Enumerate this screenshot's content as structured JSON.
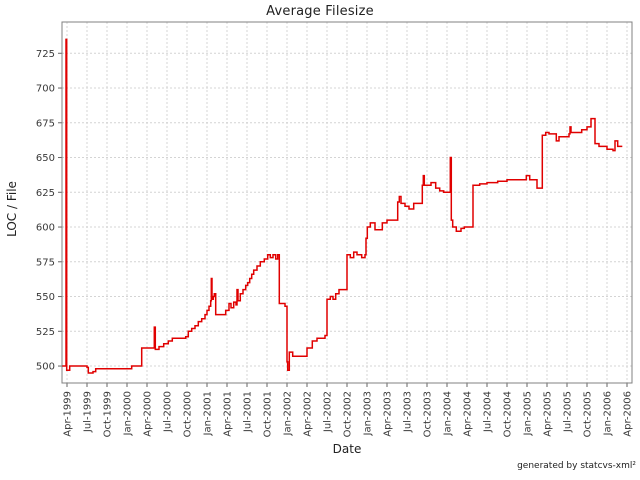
{
  "title": "Average Filesize",
  "footer": "generated by statcvs-xml²",
  "chart_data": {
    "type": "line",
    "step": true,
    "title": "Average Filesize",
    "xlabel": "Date",
    "ylabel": "LOC / File",
    "legend": "none",
    "grid": true,
    "x_unit": "months since Apr-1999",
    "xlim": [
      -0.75,
      84.75
    ],
    "ylim": [
      487.8,
      747.5
    ],
    "y_ticks": [
      500,
      525,
      550,
      575,
      600,
      625,
      650,
      675,
      700,
      725
    ],
    "x_tick_step_months": 3,
    "x_tick_labels": [
      "Apr-1999",
      "Jul-1999",
      "Oct-1999",
      "Jan-2000",
      "Apr-2000",
      "Jul-2000",
      "Oct-2000",
      "Jan-2001",
      "Apr-2001",
      "Jul-2001",
      "Oct-2001",
      "Jan-2002",
      "Apr-2002",
      "Jul-2002",
      "Oct-2002",
      "Jan-2003",
      "Apr-2003",
      "Jul-2003",
      "Oct-2003",
      "Jan-2004",
      "Apr-2004",
      "Jul-2004",
      "Oct-2004",
      "Jan-2005",
      "Apr-2005",
      "Jul-2005",
      "Oct-2005",
      "Jan-2006",
      "Apr-2006"
    ],
    "colors": {
      "line": "#e00000",
      "grid": "#d4d4d4",
      "axis": "#808080",
      "tick": "#666666",
      "text": "#3a3a3a",
      "background": "#ffffff"
    },
    "series": [
      {
        "name": "Average Filesize (LOC / File)",
        "color": "#e00000",
        "points": [
          [
            -0.7,
            500
          ],
          [
            -0.15,
            735
          ],
          [
            -0.05,
            497
          ],
          [
            0.4,
            500
          ],
          [
            3.0,
            499
          ],
          [
            3.2,
            495
          ],
          [
            3.9,
            496
          ],
          [
            4.3,
            498
          ],
          [
            9.7,
            500
          ],
          [
            11.2,
            513
          ],
          [
            13.1,
            528
          ],
          [
            13.25,
            512
          ],
          [
            13.8,
            514
          ],
          [
            14.5,
            516
          ],
          [
            15.2,
            518
          ],
          [
            15.8,
            520
          ],
          [
            17.8,
            521
          ],
          [
            18.2,
            525
          ],
          [
            18.7,
            527
          ],
          [
            19.2,
            529
          ],
          [
            19.7,
            532
          ],
          [
            20.2,
            534
          ],
          [
            20.7,
            537
          ],
          [
            21.0,
            540
          ],
          [
            21.3,
            543
          ],
          [
            21.55,
            547
          ],
          [
            21.65,
            563
          ],
          [
            21.75,
            548
          ],
          [
            21.95,
            550
          ],
          [
            22.1,
            552
          ],
          [
            22.3,
            537
          ],
          [
            23.8,
            540
          ],
          [
            24.3,
            545
          ],
          [
            24.6,
            542
          ],
          [
            25.0,
            546
          ],
          [
            25.35,
            544
          ],
          [
            25.5,
            555
          ],
          [
            25.65,
            547
          ],
          [
            26.0,
            552
          ],
          [
            26.4,
            555
          ],
          [
            26.8,
            558
          ],
          [
            27.1,
            560
          ],
          [
            27.4,
            563
          ],
          [
            27.7,
            566
          ],
          [
            28.0,
            569
          ],
          [
            28.5,
            572
          ],
          [
            29.0,
            575
          ],
          [
            29.6,
            577
          ],
          [
            30.1,
            580
          ],
          [
            30.5,
            578
          ],
          [
            30.9,
            580
          ],
          [
            31.3,
            577
          ],
          [
            31.6,
            580
          ],
          [
            31.85,
            545
          ],
          [
            32.7,
            543
          ],
          [
            33.0,
            503
          ],
          [
            33.1,
            497
          ],
          [
            33.35,
            510
          ],
          [
            33.85,
            507
          ],
          [
            36.0,
            513
          ],
          [
            36.8,
            518
          ],
          [
            37.5,
            520
          ],
          [
            38.7,
            522
          ],
          [
            39.0,
            548
          ],
          [
            39.5,
            550
          ],
          [
            39.9,
            548
          ],
          [
            40.3,
            552
          ],
          [
            40.8,
            555
          ],
          [
            42.0,
            580
          ],
          [
            42.5,
            578
          ],
          [
            43.0,
            582
          ],
          [
            43.5,
            580
          ],
          [
            44.2,
            578
          ],
          [
            44.7,
            580
          ],
          [
            44.85,
            592
          ],
          [
            45.05,
            600
          ],
          [
            45.5,
            603
          ],
          [
            46.2,
            598
          ],
          [
            47.3,
            603
          ],
          [
            48.0,
            605
          ],
          [
            49.6,
            618
          ],
          [
            49.85,
            622
          ],
          [
            50.1,
            617
          ],
          [
            50.7,
            615
          ],
          [
            51.3,
            613
          ],
          [
            52.0,
            617
          ],
          [
            53.3,
            630
          ],
          [
            53.45,
            637
          ],
          [
            53.6,
            630
          ],
          [
            54.6,
            632
          ],
          [
            55.3,
            628
          ],
          [
            55.9,
            626
          ],
          [
            56.5,
            625
          ],
          [
            57.5,
            650
          ],
          [
            57.65,
            605
          ],
          [
            57.85,
            600
          ],
          [
            58.4,
            597
          ],
          [
            59.1,
            599
          ],
          [
            59.6,
            600
          ],
          [
            60.9,
            630
          ],
          [
            61.9,
            631
          ],
          [
            63.0,
            632
          ],
          [
            64.6,
            633
          ],
          [
            66.0,
            634
          ],
          [
            68.9,
            637
          ],
          [
            69.4,
            634
          ],
          [
            70.5,
            628
          ],
          [
            71.3,
            666
          ],
          [
            71.8,
            668
          ],
          [
            72.3,
            667
          ],
          [
            73.4,
            662
          ],
          [
            73.8,
            665
          ],
          [
            75.3,
            667
          ],
          [
            75.45,
            672
          ],
          [
            75.6,
            668
          ],
          [
            76.3,
            668
          ],
          [
            77.2,
            670
          ],
          [
            78.0,
            672
          ],
          [
            78.6,
            678
          ],
          [
            79.2,
            660
          ],
          [
            79.8,
            658
          ],
          [
            81.0,
            656
          ],
          [
            81.9,
            655
          ],
          [
            82.2,
            662
          ],
          [
            82.6,
            658
          ],
          [
            83.3,
            658
          ]
        ]
      }
    ]
  }
}
